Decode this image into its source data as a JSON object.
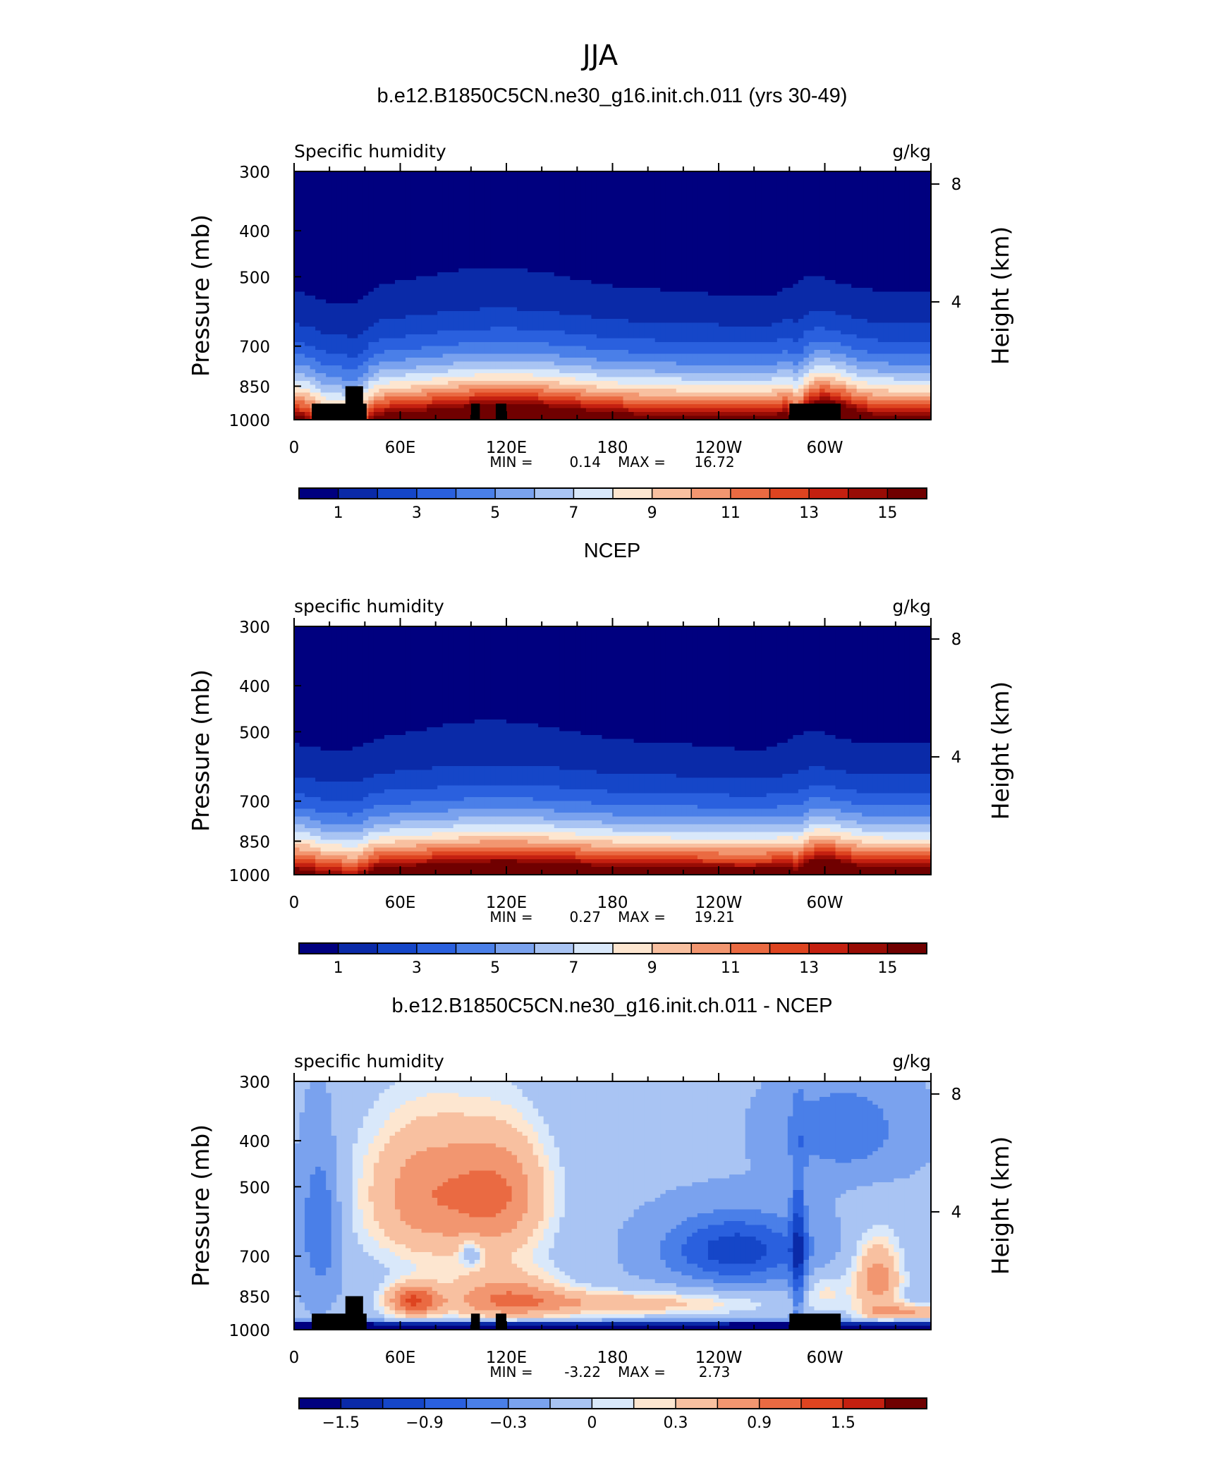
{
  "figure": {
    "title": "JJA"
  },
  "chart_data": [
    {
      "type": "contour",
      "title": "b.e12.B1850C5CN.ne30_g16.init.ch.011 (yrs 30-49)",
      "left_label": "Specific humidity",
      "units": "g/kg",
      "ylabel": "Pressure (mb)",
      "ylabel_right": "Height (km)",
      "y_ticks": [
        "300",
        "400",
        "500",
        "700",
        "850",
        "1000"
      ],
      "y_right_ticks": [
        "8",
        "4"
      ],
      "x_ticks": [
        "0",
        "60E",
        "120E",
        "180",
        "120W",
        "60W"
      ],
      "stats": {
        "min_label": "MIN =",
        "min": "0.14",
        "max_label": "MAX =",
        "max": "16.72"
      },
      "levels": [
        1,
        2,
        3,
        4,
        5,
        6,
        7,
        8,
        9,
        10,
        11,
        12,
        13,
        14,
        15
      ],
      "colorbar_labels": [
        "1",
        "3",
        "5",
        "7",
        "9",
        "11",
        "13",
        "15"
      ],
      "range": [
        0.14,
        16.72
      ],
      "colors": [
        "#00007f",
        "#0a2aa8",
        "#1546c8",
        "#2a60de",
        "#4a7fe8",
        "#7aa2ee",
        "#a9c4f3",
        "#d9e8fa",
        "#fde6d0",
        "#f8c0a0",
        "#f29670",
        "#ea6a42",
        "#de4420",
        "#c42010",
        "#980c05",
        "#700000"
      ]
    },
    {
      "type": "contour",
      "title": "NCEP",
      "left_label": "specific humidity",
      "units": "g/kg",
      "ylabel": "Pressure (mb)",
      "ylabel_right": "Height (km)",
      "y_ticks": [
        "300",
        "400",
        "500",
        "700",
        "850",
        "1000"
      ],
      "y_right_ticks": [
        "8",
        "4"
      ],
      "x_ticks": [
        "0",
        "60E",
        "120E",
        "180",
        "120W",
        "60W"
      ],
      "stats": {
        "min_label": "MIN =",
        "min": "0.27",
        "max_label": "MAX =",
        "max": "19.21"
      },
      "levels": [
        1,
        2,
        3,
        4,
        5,
        6,
        7,
        8,
        9,
        10,
        11,
        12,
        13,
        14,
        15
      ],
      "colorbar_labels": [
        "1",
        "3",
        "5",
        "7",
        "9",
        "11",
        "13",
        "15"
      ],
      "range": [
        0.27,
        19.21
      ],
      "colors": [
        "#00007f",
        "#0a2aa8",
        "#1546c8",
        "#2a60de",
        "#4a7fe8",
        "#7aa2ee",
        "#a9c4f3",
        "#d9e8fa",
        "#fde6d0",
        "#f8c0a0",
        "#f29670",
        "#ea6a42",
        "#de4420",
        "#c42010",
        "#980c05",
        "#700000"
      ]
    },
    {
      "type": "contour",
      "title": "b.e12.B1850C5CN.ne30_g16.init.ch.011 - NCEP",
      "left_label": "specific humidity",
      "units": "g/kg",
      "ylabel": "Pressure (mb)",
      "ylabel_right": "Height (km)",
      "y_ticks": [
        "300",
        "400",
        "500",
        "700",
        "850",
        "1000"
      ],
      "y_right_ticks": [
        "8",
        "4"
      ],
      "x_ticks": [
        "0",
        "60E",
        "120E",
        "180",
        "120W",
        "60W"
      ],
      "stats": {
        "min_label": "MIN =",
        "min": "-3.22",
        "max_label": "MAX =",
        "max": "2.73"
      },
      "levels": [
        -1.8,
        -1.5,
        -1.2,
        -0.9,
        -0.6,
        -0.3,
        0,
        0.15,
        0.3,
        0.6,
        0.9,
        1.2,
        1.5,
        1.8
      ],
      "colorbar_labels": [
        "-1.5",
        "-0.9",
        "-0.3",
        "0",
        "0.3",
        "0.9",
        "1.5"
      ],
      "range": [
        -3.22,
        2.73
      ],
      "colors": [
        "#00007f",
        "#0a2aa8",
        "#1546c8",
        "#2a60de",
        "#4a7fe8",
        "#7aa2ee",
        "#a9c4f3",
        "#d9e8fa",
        "#fde6d0",
        "#f8c0a0",
        "#f29670",
        "#ea6a42",
        "#de4420",
        "#c42010",
        "#700000"
      ]
    }
  ]
}
